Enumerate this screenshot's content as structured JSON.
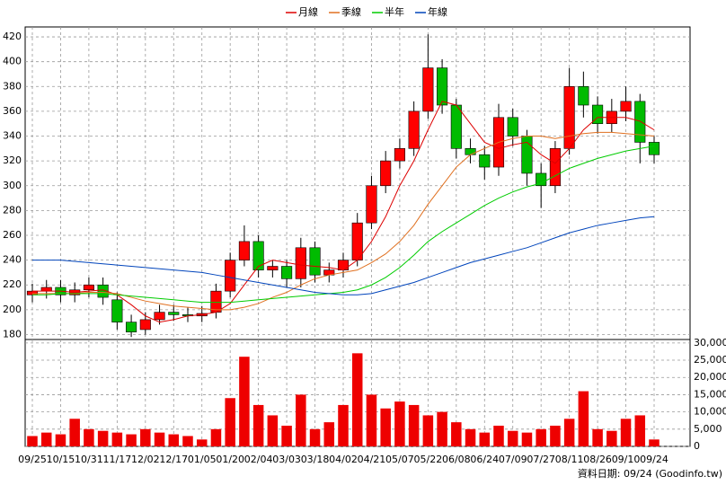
{
  "chart_data": {
    "type": "candlestick",
    "categories": [
      "09/25",
      null,
      "10/15",
      null,
      "10/31",
      null,
      "11/17",
      null,
      "12/02",
      null,
      "12/17",
      null,
      "01/05",
      null,
      "01/20",
      null,
      "02/04",
      null,
      "03/03",
      null,
      "03/18",
      null,
      "04/02",
      null,
      "04/21",
      null,
      "05/07",
      null,
      "05/22",
      null,
      "06/08",
      null,
      "06/24",
      null,
      "07/09",
      null,
      "07/27",
      null,
      "08/11",
      null,
      "08/26",
      null,
      "09/10",
      null,
      "09/24"
    ],
    "open": [
      212,
      215,
      218,
      212,
      216,
      220,
      208,
      190,
      184,
      192,
      198,
      196,
      195,
      198,
      215,
      240,
      255,
      232,
      235,
      225,
      250,
      228,
      232,
      240,
      270,
      300,
      320,
      330,
      360,
      395,
      365,
      330,
      325,
      315,
      355,
      340,
      310,
      300,
      330,
      380,
      365,
      350,
      360,
      368,
      335
    ],
    "high": [
      221,
      224,
      224,
      222,
      226,
      226,
      214,
      196,
      198,
      204,
      204,
      202,
      203,
      221,
      246,
      268,
      260,
      240,
      240,
      258,
      255,
      238,
      246,
      278,
      308,
      328,
      338,
      368,
      422,
      402,
      370,
      338,
      332,
      366,
      362,
      345,
      318,
      336,
      395,
      392,
      372,
      370,
      380,
      374,
      340
    ],
    "low": [
      206,
      209,
      206,
      206,
      210,
      204,
      184,
      178,
      180,
      188,
      191,
      190,
      190,
      193,
      210,
      235,
      226,
      226,
      218,
      218,
      222,
      222,
      226,
      235,
      265,
      294,
      314,
      324,
      354,
      358,
      322,
      318,
      305,
      308,
      332,
      300,
      282,
      294,
      325,
      355,
      342,
      343,
      352,
      318,
      318
    ],
    "close": [
      215,
      218,
      212,
      216,
      220,
      210,
      190,
      182,
      192,
      198,
      196,
      195,
      197,
      215,
      240,
      255,
      232,
      235,
      225,
      250,
      228,
      232,
      240,
      270,
      300,
      320,
      330,
      360,
      395,
      365,
      330,
      325,
      315,
      355,
      340,
      310,
      300,
      330,
      380,
      365,
      350,
      360,
      368,
      335,
      325
    ],
    "up_color": "#ff0000",
    "down_color": "#00bb00",
    "series": [
      {
        "name": "月線",
        "color": "#dd0000",
        "values": [
          215,
          215,
          215,
          214,
          215,
          216,
          212,
          204,
          195,
          190,
          192,
          195,
          196,
          198,
          205,
          220,
          235,
          240,
          238,
          236,
          235,
          234,
          232,
          240,
          255,
          275,
          300,
          320,
          345,
          368,
          365,
          350,
          335,
          330,
          333,
          335,
          325,
          318,
          330,
          345,
          355,
          355,
          355,
          352,
          345
        ]
      },
      {
        "name": "季線",
        "color": "#e07020",
        "values": [
          213,
          213,
          213,
          213,
          214,
          214,
          213,
          210,
          207,
          205,
          203,
          202,
          201,
          200,
          200,
          202,
          205,
          210,
          214,
          220,
          225,
          228,
          230,
          232,
          238,
          245,
          255,
          268,
          285,
          300,
          315,
          325,
          330,
          335,
          338,
          340,
          340,
          338,
          340,
          342,
          343,
          343,
          342,
          341,
          340
        ]
      },
      {
        "name": "半年",
        "color": "#00cc00",
        "values": [
          212,
          212,
          213,
          213,
          213,
          213,
          212,
          211,
          210,
          209,
          208,
          207,
          206,
          206,
          206,
          207,
          208,
          209,
          210,
          211,
          212,
          213,
          214,
          216,
          220,
          226,
          234,
          244,
          255,
          263,
          270,
          277,
          284,
          290,
          295,
          299,
          302,
          308,
          314,
          318,
          322,
          325,
          328,
          330,
          332
        ]
      },
      {
        "name": "年線",
        "color": "#0044bb",
        "values": [
          240,
          240,
          240,
          239,
          238,
          237,
          236,
          235,
          234,
          233,
          232,
          231,
          230,
          228,
          226,
          224,
          222,
          220,
          218,
          216,
          214,
          213,
          212,
          212,
          213,
          216,
          219,
          222,
          226,
          230,
          234,
          238,
          241,
          244,
          247,
          250,
          254,
          258,
          262,
          265,
          268,
          270,
          272,
          274,
          275
        ]
      }
    ],
    "ylim": [
      176,
      428
    ],
    "yticks": [
      180,
      200,
      220,
      240,
      260,
      280,
      300,
      320,
      340,
      360,
      380,
      400,
      420
    ],
    "volume": {
      "color": "#ee0000",
      "values": [
        3000,
        4000,
        3500,
        8000,
        5000,
        4500,
        4000,
        3500,
        5000,
        4000,
        3500,
        3000,
        2000,
        5000,
        14000,
        26000,
        12000,
        9000,
        6000,
        15000,
        5000,
        7000,
        12000,
        27000,
        15000,
        11000,
        13000,
        12000,
        9000,
        10000,
        7000,
        5000,
        4000,
        6000,
        4500,
        4000,
        5000,
        6000,
        8000,
        16000,
        5000,
        4500,
        8000,
        9000,
        2000
      ],
      "ylim": [
        0,
        31000
      ],
      "yticks": [
        0,
        {
          "value": 5000,
          "label": "5,000"
        },
        {
          "value": 10000,
          "label": "10,000"
        },
        {
          "value": 15000,
          "label": "15,000"
        },
        {
          "value": 20000,
          "label": "20,000"
        },
        {
          "value": 25000,
          "label": "25,000"
        },
        {
          "value": 30000,
          "label": "30,000"
        }
      ]
    },
    "grid": true,
    "footer": "資料日期: 09/24 (Goodinfo.tw)"
  }
}
